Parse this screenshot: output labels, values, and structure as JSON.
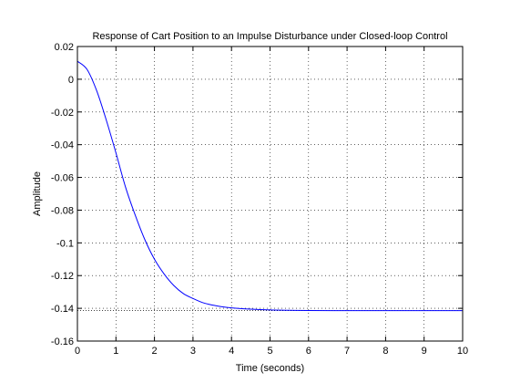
{
  "chart_data": {
    "type": "line",
    "title": "Response of Cart Position to an Impulse Disturbance under Closed-loop Control",
    "xlabel": "Time (seconds)",
    "ylabel": "Amplitude",
    "xlim": [
      0,
      10
    ],
    "ylim": [
      -0.16,
      0.02
    ],
    "x_ticks": [
      0,
      1,
      2,
      3,
      4,
      5,
      6,
      7,
      8,
      9,
      10
    ],
    "y_ticks": [
      0.02,
      0,
      -0.02,
      -0.04,
      -0.06,
      -0.08,
      -0.1,
      -0.12,
      -0.14,
      -0.16
    ],
    "x_tick_labels": [
      "0",
      "1",
      "2",
      "3",
      "4",
      "5",
      "6",
      "7",
      "8",
      "9",
      "10"
    ],
    "y_tick_labels": [
      "0.02",
      "0",
      "-0.02",
      "-0.04",
      "-0.06",
      "-0.08",
      "-0.1",
      "-0.12",
      "-0.14",
      "-0.16"
    ],
    "grid": true,
    "series": [
      {
        "color": "#0000ff",
        "x": [
          0,
          0.25,
          0.5,
          0.75,
          1,
          1.25,
          1.5,
          1.75,
          2,
          2.25,
          2.5,
          2.75,
          3,
          3.25,
          3.5,
          3.75,
          4,
          4.5,
          5,
          5.5,
          6,
          7,
          8,
          9,
          10
        ],
        "y": [
          0.011,
          0.006,
          -0.007,
          -0.025,
          -0.045,
          -0.066,
          -0.083,
          -0.098,
          -0.11,
          -0.119,
          -0.126,
          -0.131,
          -0.134,
          -0.1365,
          -0.138,
          -0.139,
          -0.1397,
          -0.1405,
          -0.141,
          -0.1412,
          -0.1413,
          -0.1414,
          -0.1414,
          -0.1414,
          -0.1414
        ]
      }
    ],
    "reference_line": {
      "y": -0.1414,
      "style": "dotted",
      "color": "#000000"
    }
  }
}
